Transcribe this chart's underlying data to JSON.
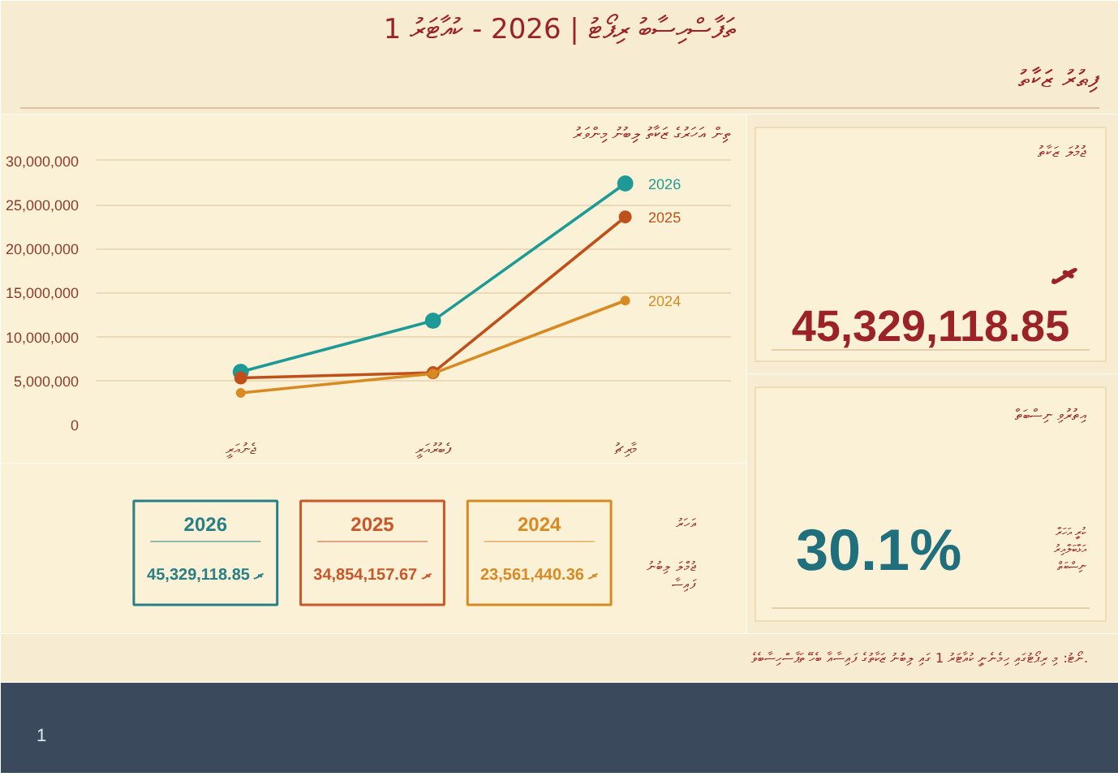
{
  "chart_data": [
    {
      "type": "other",
      "title": "ތަފާސްހިސާބު ރިޕޯޓު | 2026 - ކުއާޓަރު 1",
      "subtitle": "ފިޠުރު ޒަކާތު",
      "annotations": [
        "ނޯޓު: މި ރިޕޯޓުގައި ހިމެނެނީ ކުއާޓަރު 1 ގައި ލިބުނު ޒަކާތުގެ ފައިސާއާ ބެހޭ ތަފާސްހިސާބެވެ.",
        "1"
      ]
    },
    {
      "type": "line",
      "title": "ތިން އަހަރުގެ ޒަކާތު ލިބުނު މިންވަރު",
      "categories": [
        "ޖެނުއަރީ",
        "ފެބުރުއަރީ",
        "މާރިޗު"
      ],
      "series": [
        {
          "name": "2026",
          "color": "#1e9a96",
          "values": [
            6000000,
            11800000,
            27400000
          ]
        },
        {
          "name": "2025",
          "color": "#c0501a",
          "values": [
            5300000,
            5900000,
            23600000
          ]
        },
        {
          "name": "2024",
          "color": "#d88a22",
          "values": [
            3600000,
            5800000,
            14100000
          ]
        }
      ],
      "ylim": [
        0,
        31000000
      ],
      "yticks": [
        {
          "value": 0,
          "label": "0"
        },
        {
          "value": 5000000,
          "label": "5,000,000"
        },
        {
          "value": 10000000,
          "label": "10,000,000"
        },
        {
          "value": 15000000,
          "label": "15,000,000"
        },
        {
          "value": 20000000,
          "label": "20,000,000"
        },
        {
          "value": 25000000,
          "label": "25,000,000"
        },
        {
          "value": 30000000,
          "label": "30,000,000"
        }
      ],
      "grid": "y",
      "marker": "circle",
      "line_style": "solid"
    },
    {
      "type": "other",
      "categories": [
        "2026",
        "2025",
        "2024"
      ],
      "colors": [
        "#2a7f86",
        "#c8572a",
        "#d88a22"
      ],
      "value_labels": [
        "ރ 45,329,118.85",
        "ރ 34,854,157.67",
        "ރ 23,561,440.36"
      ],
      "annotations": [
        "އަހަރު",
        "ޖުމްލަ ލިބުނު\nފައިސާ"
      ]
    },
    {
      "type": "other",
      "title": "ޖުމުލަ ޒަކާތު",
      "annotations": [
        "ރ",
        "45,329,118.85"
      ]
    },
    {
      "type": "other",
      "title": "އިތުރުވި ނިސްބަތް",
      "annotations": [
        "30.1%",
        "ކުރީ އަހަރާ\nއަޅާބަލާއިރު\nނިސްބަތް"
      ]
    }
  ]
}
